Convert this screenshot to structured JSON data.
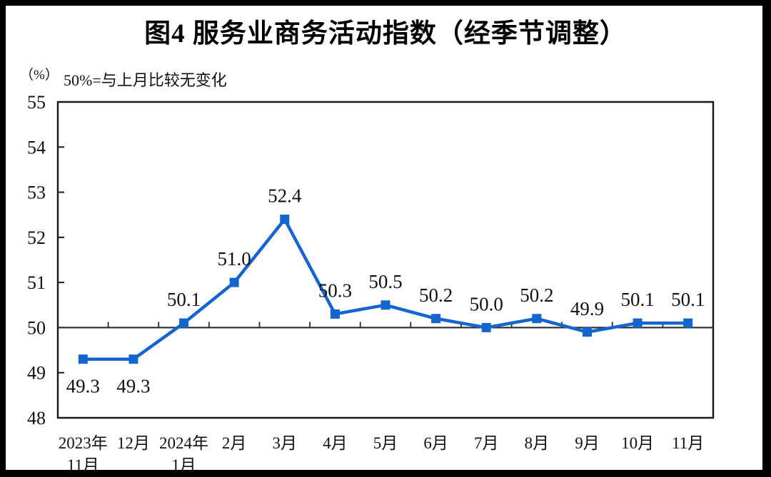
{
  "header": {
    "title": "图4 服务业商务活动指数（经季节调整）",
    "unit_label": "（%）",
    "note": "50%=与上月比较无变化"
  },
  "chart_data": {
    "type": "line",
    "title": "图4 服务业商务活动指数（经季节调整）",
    "ylabel": "（%）",
    "note": "50%=与上月比较无变化",
    "categories": [
      [
        "2023年",
        "11月"
      ],
      [
        "12月"
      ],
      [
        "2024年",
        "1月"
      ],
      [
        "2月"
      ],
      [
        "3月"
      ],
      [
        "4月"
      ],
      [
        "5月"
      ],
      [
        "6月"
      ],
      [
        "7月"
      ],
      [
        "8月"
      ],
      [
        "9月"
      ],
      [
        "10月"
      ],
      [
        "11月"
      ]
    ],
    "series": [
      {
        "name": "服务业商务活动指数",
        "values": [
          49.3,
          49.3,
          50.1,
          51.0,
          52.4,
          50.3,
          50.5,
          50.2,
          50.0,
          50.2,
          49.9,
          50.1,
          50.1
        ]
      }
    ],
    "data_labels": [
      "49.3",
      "49.3",
      "50.1",
      "51.0",
      "52.4",
      "50.3",
      "50.5",
      "50.2",
      "50.0",
      "50.2",
      "49.9",
      "50.1",
      "50.1"
    ],
    "label_positions": [
      "below",
      "below",
      "above",
      "above",
      "above",
      "above",
      "above",
      "above",
      "above",
      "above",
      "above",
      "above",
      "above"
    ],
    "ylim": [
      48,
      55
    ],
    "ytick_step": 1,
    "reference_line": 50,
    "grid": false,
    "legend": "none",
    "marker": "square",
    "line_color": "#1565CE",
    "axis_color": "#1a1a1a",
    "reference_line_color": "#2b2b2b"
  }
}
